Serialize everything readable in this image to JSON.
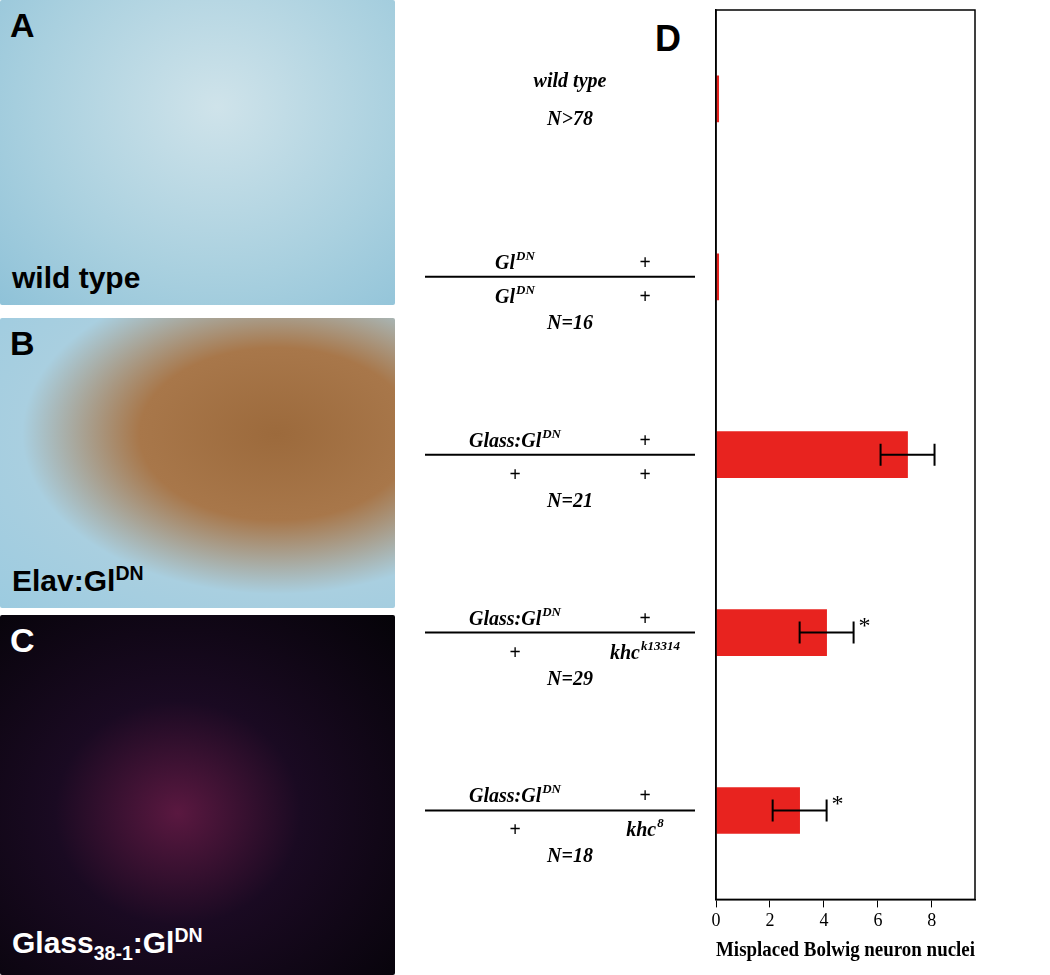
{
  "panels": [
    {
      "letter": "A",
      "caption": [
        {
          "text": "wild type"
        }
      ]
    },
    {
      "letter": "B",
      "caption": [
        {
          "text": "Elav:Gl",
          "sup": "DN"
        }
      ]
    },
    {
      "letter": "C",
      "caption": [
        {
          "text": "Glass",
          "sub": "38-1"
        },
        {
          "text": ":Gl",
          "sup": "DN"
        }
      ]
    }
  ],
  "chart_data": {
    "type": "bar",
    "panel_label": "D",
    "orientation": "horizontal",
    "categories": [
      {
        "label": "wild type",
        "n": "N>78"
      },
      {
        "top": [
          [
            {
              "text": "Gl",
              "sup": "DN"
            }
          ],
          [
            {
              "text": "+"
            }
          ]
        ],
        "bottom": [
          [
            {
              "text": "Gl",
              "sup": "DN"
            }
          ],
          [
            {
              "text": "+"
            }
          ]
        ],
        "n": "N=16"
      },
      {
        "top": [
          [
            {
              "text": "Glass:Gl",
              "sup": "DN"
            }
          ],
          [
            {
              "text": "+"
            }
          ]
        ],
        "bottom": [
          [
            {
              "text": "+"
            }
          ],
          [
            {
              "text": "+"
            }
          ]
        ],
        "n": "N=21"
      },
      {
        "top": [
          [
            {
              "text": "Glass:Gl",
              "sup": "DN"
            }
          ],
          [
            {
              "text": "+"
            }
          ]
        ],
        "bottom": [
          [
            {
              "text": "+"
            }
          ],
          [
            {
              "text": "khc",
              "sup": "k13314"
            }
          ]
        ],
        "n": "N=29"
      },
      {
        "top": [
          [
            {
              "text": "Glass:Gl",
              "sup": "DN"
            }
          ],
          [
            {
              "text": "+"
            }
          ]
        ],
        "bottom": [
          [
            {
              "text": "+"
            }
          ],
          [
            {
              "text": "khc",
              "sup": "8"
            }
          ]
        ],
        "n": "N=18"
      }
    ],
    "values": [
      0.1,
      0.1,
      7.1,
      4.1,
      3.1
    ],
    "errors": [
      null,
      null,
      1,
      1,
      1
    ],
    "annotations": [
      null,
      null,
      null,
      "*",
      "*"
    ],
    "color": "#e8231f",
    "x_label": "Misplaced Bolwig neuron nuclei",
    "xlim": [
      0,
      9.6
    ],
    "xticks": [
      0,
      2,
      4,
      6,
      8
    ],
    "grid": false
  }
}
